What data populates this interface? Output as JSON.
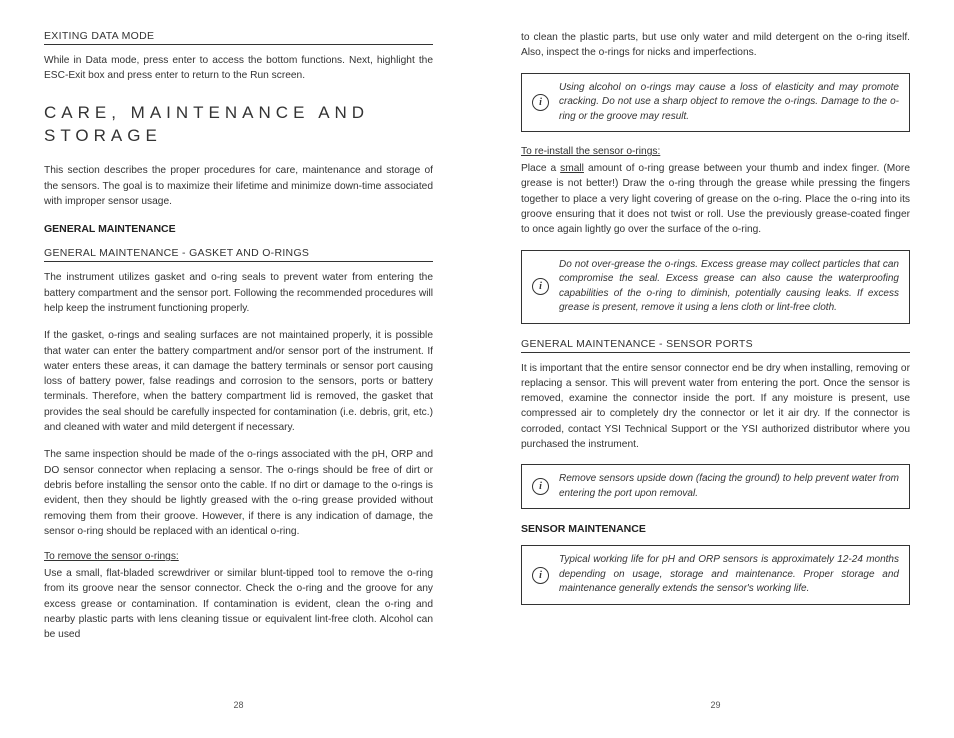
{
  "leftPage": {
    "number": "28",
    "sec1": {
      "header": "EXITING DATA MODE",
      "body": "While in Data mode, press enter to access the bottom functions. Next, highlight the ESC-Exit box and press enter to return to the Run screen."
    },
    "mainTitle1": "CARE, MAINTENANCE AND",
    "mainTitle2": "STORAGE",
    "intro": "This section describes the proper procedures for care, maintenance and storage of the sensors. The goal is to maximize their lifetime and minimize down-time associated with improper sensor usage.",
    "bold1": "GENERAL MAINTENANCE",
    "sec2": {
      "header": "GENERAL MAINTENANCE - GASKET AND O-RINGS",
      "p1": "The instrument utilizes gasket and o-ring seals to prevent water from entering the battery compartment and the sensor port. Following the recommended procedures will help keep the instrument functioning properly.",
      "p2": "If the gasket, o-rings and sealing surfaces are not maintained properly, it is possible that water can enter the battery compartment and/or sensor port of the instrument.  If water enters these areas, it can damage the battery terminals or sensor port causing loss of battery power, false readings and corrosion to the sensors, ports or battery terminals. Therefore, when the battery compartment lid is removed, the gasket that provides the seal should be carefully inspected for contamination (i.e. debris, grit, etc.) and cleaned with water and mild detergent if necessary.",
      "p3": "The same inspection should be made of the o-rings associated with the pH, ORP and DO sensor connector when replacing a sensor. The o-rings should be free of dirt or debris before installing the sensor onto the cable. If no dirt or damage to the o-rings is evident, then they should be lightly greased with the o-ring grease provided without removing them from their groove. However, if there is any indication of damage, the sensor o-ring should be replaced with an identical o-ring.",
      "sub1Title": "To remove the sensor o-rings:",
      "sub1Body": "Use a small, flat-bladed screwdriver or similar blunt-tipped tool to remove the o-ring from its groove near the sensor connector. Check the o-ring and the groove for any excess grease or contamination. If contamination is evident, clean the o-ring and nearby plastic parts with lens cleaning tissue or equivalent lint-free cloth. Alcohol can be used"
    }
  },
  "rightPage": {
    "number": "29",
    "cont": "to clean the plastic parts, but use only water and mild detergent on the o-ring itself. Also, inspect the o-rings for nicks and imperfections.",
    "callout1": "Using alcohol on o-rings may cause a loss of elasticity and may promote cracking. Do not use a sharp object to remove the o-rings.  Damage to the o-ring or the groove may result.",
    "sub2Title": "To re-install the sensor o-rings:",
    "sub2BodyA": "Place a ",
    "sub2BodyU": "small",
    "sub2BodyB": " amount of o-ring grease between your thumb and index finger.  (More grease is not better!) Draw the o-ring through the grease while pressing the fingers together to place a very light covering of grease on the o-ring. Place the o-ring into its groove ensuring that it does not twist or roll. Use the previously grease-coated finger to once again lightly go over the surface of the o-ring.",
    "callout2": "Do not over-grease the o-rings. Excess grease may collect particles that can compromise the seal. Excess grease can also cause the waterproofing capabilities of the o-ring to diminish, potentially causing leaks. If excess grease is present, remove it using a lens cloth or lint-free cloth.",
    "sec3": {
      "header": "GENERAL MAINTENANCE - SENSOR PORTS",
      "body": "It is important that the entire sensor connector end be dry when installing, removing or replacing a sensor. This will prevent water from entering the port. Once the sensor is removed, examine the connector inside the port. If any moisture is present, use compressed air to completely dry the connector or let it air dry. If the connector is corroded, contact YSI Technical Support or the YSI authorized distributor where you purchased the instrument."
    },
    "callout3": "Remove sensors upside down (facing the ground) to help prevent water from entering the port upon removal.",
    "bold2": "SENSOR MAINTENANCE",
    "callout4": "Typical working life for pH and ORP sensors is approximately 12-24 months depending on usage, storage and maintenance. Proper storage and maintenance generally extends the sensor's working life."
  }
}
